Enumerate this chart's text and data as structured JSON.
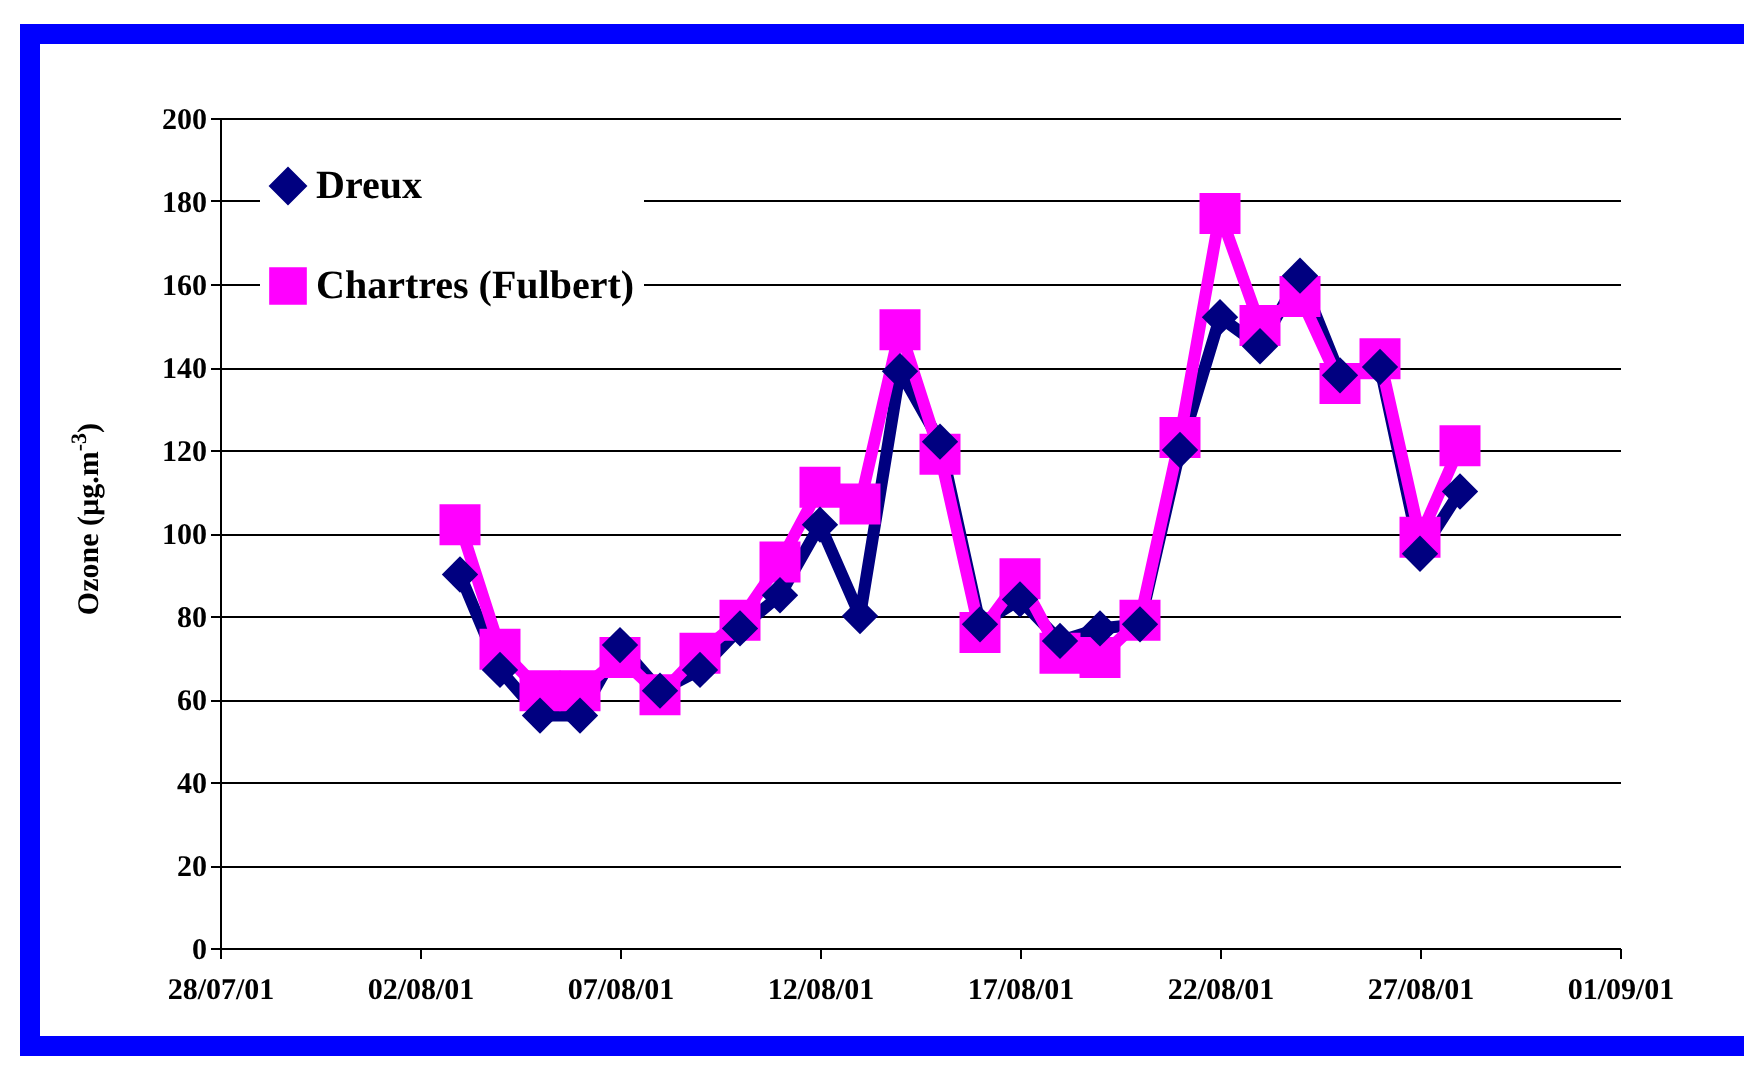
{
  "chart_data": {
    "type": "line",
    "ylabel": "Ozone (µg.m$^{-3}$)",
    "x": [
      "--08-03",
      "--08-04",
      "--08-05",
      "--08-06",
      "--08-07",
      "--08-08",
      "--08-09",
      "--08-10",
      "--08-11",
      "--08-12",
      "--08-13",
      "--08-14",
      "--08-15",
      "--08-16",
      "--08-17",
      "--08-18",
      "--08-19",
      "--08-20",
      "--08-21",
      "--08-22",
      "--08-23",
      "--08-24",
      "--08-25",
      "--08-26",
      "--08-27",
      "--08-28"
    ],
    "series": [
      {
        "name": "Dreux",
        "color": "#000080",
        "marker": "diamond",
        "values": [
          90,
          67,
          56,
          56,
          73,
          62,
          67,
          77,
          85,
          102,
          80,
          139,
          122,
          78,
          84,
          74,
          77,
          78,
          120,
          152,
          145,
          162,
          138,
          140,
          95,
          110
        ]
      },
      {
        "name": "Chartres (Fulbert)",
        "color": "#ff00ff",
        "marker": "square",
        "values": [
          102,
          72,
          62,
          62,
          70,
          61,
          71,
          79,
          93,
          111,
          107,
          149,
          119,
          76,
          89,
          71,
          70,
          79,
          123,
          177,
          150,
          157,
          136,
          142,
          99,
          121
        ]
      }
    ],
    "xlim": [
      "--07-28",
      "--09-01"
    ],
    "xticks": [
      {
        "value": "--07-28",
        "label": "28/07/01"
      },
      {
        "value": "--08-02",
        "label": "02/08/01"
      },
      {
        "value": "--08-07",
        "label": "07/08/01"
      },
      {
        "value": "--08-12",
        "label": "12/08/01"
      },
      {
        "value": "--08-17",
        "label": "17/08/01"
      },
      {
        "value": "--08-22",
        "label": "22/08/01"
      },
      {
        "value": "--08-27",
        "label": "27/08/01"
      },
      {
        "value": "--09-01",
        "label": "01/09/01"
      }
    ],
    "ylim": [
      0,
      200
    ],
    "yticks": [
      0,
      20,
      40,
      60,
      80,
      100,
      120,
      140,
      160,
      180,
      200
    ],
    "grid": "y",
    "legend": "top left",
    "line_style": "solid"
  }
}
